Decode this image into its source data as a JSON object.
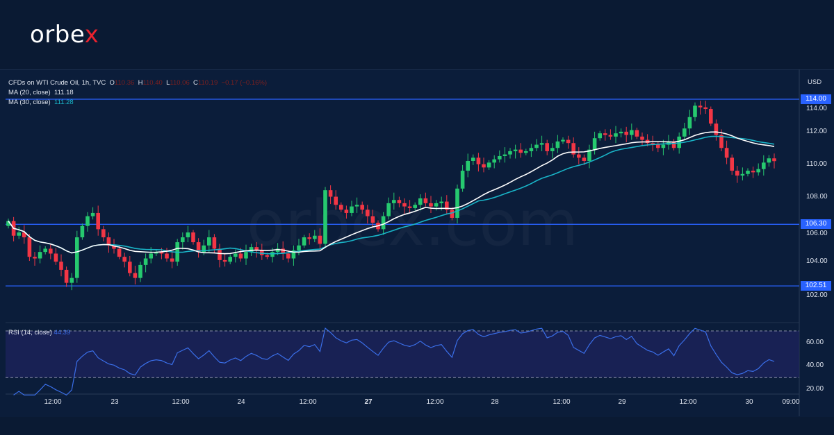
{
  "brand": {
    "logo_main": "orbe",
    "logo_x": "x",
    "watermark": "orbex.com"
  },
  "legend": {
    "symbol": "CFDs on WTI Crude Oil, 1h, TVC",
    "o_label": "O",
    "o": "110.36",
    "h_label": "H",
    "h": "110.40",
    "l_label": "L",
    "l": "110.06",
    "c_label": "C",
    "c": "110.19",
    "change": "−0.17 (−0.16%)",
    "ma20_label": "MA (20, close)",
    "ma20": "111.18",
    "ma30_label": "MA (30, close)",
    "ma30": "111.28",
    "rsi_label": "RSI (14, close)",
    "rsi": "44.39"
  },
  "axis": {
    "currency": "USD"
  },
  "colors": {
    "up": "#26c96f",
    "down": "#f23645",
    "ma20": "#ffffff",
    "ma30": "#19b5c8",
    "rsi": "#3a6ee8",
    "level": "#2962ff"
  },
  "chart_data": {
    "type": "candlestick",
    "title": "CFDs on WTI Crude Oil, 1h, TVC",
    "ylim": [
      101,
      115
    ],
    "yticks": [
      "114.00",
      "112.00",
      "110.00",
      "108.00",
      "106.00",
      "104.00",
      "102.00"
    ],
    "horizontal_levels": [
      "114.00",
      "106.30",
      "102.51"
    ],
    "xticks": [
      "12:00",
      "23",
      "12:00",
      "24",
      "12:00",
      "27",
      "12:00",
      "28",
      "12:00",
      "29",
      "12:00",
      "30",
      "09:00"
    ],
    "rsi_ylim": [
      15,
      80
    ],
    "rsi_ticks": [
      "60.00",
      "40.00",
      "20.00"
    ],
    "rsi_bands": [
      70,
      30
    ],
    "open_first": 106.2,
    "closes": [
      106.5,
      105.6,
      105.8,
      105.5,
      104.3,
      104.2,
      104.6,
      104.8,
      104.5,
      104.0,
      103.5,
      102.7,
      103.0,
      105.5,
      106.2,
      106.8,
      107.0,
      106.0,
      105.5,
      105.0,
      104.8,
      104.3,
      104.0,
      103.3,
      103.0,
      103.8,
      104.2,
      104.5,
      104.6,
      104.5,
      104.2,
      104.0,
      105.2,
      105.5,
      105.8,
      105.2,
      104.6,
      105.0,
      105.5,
      104.8,
      104.1,
      104.0,
      104.3,
      104.5,
      104.2,
      104.6,
      104.9,
      104.7,
      104.4,
      104.3,
      104.6,
      104.8,
      104.5,
      104.2,
      104.7,
      105.0,
      105.5,
      105.4,
      105.6,
      105.1,
      108.4,
      108.0,
      107.5,
      107.2,
      107.0,
      107.4,
      107.5,
      107.2,
      106.8,
      106.4,
      106.0,
      106.8,
      107.6,
      107.8,
      107.6,
      107.4,
      107.3,
      107.5,
      107.9,
      107.6,
      107.4,
      107.6,
      107.7,
      107.2,
      106.7,
      108.5,
      109.6,
      110.2,
      110.4,
      110.0,
      109.8,
      110.1,
      110.3,
      110.5,
      110.6,
      110.8,
      110.9,
      110.7,
      110.8,
      111.0,
      111.2,
      111.3,
      110.8,
      111.0,
      111.4,
      111.5,
      111.3,
      110.6,
      110.4,
      110.2,
      110.9,
      111.6,
      111.9,
      111.8,
      111.7,
      111.9,
      112.0,
      111.8,
      112.1,
      111.7,
      111.5,
      111.3,
      111.2,
      111.0,
      111.2,
      111.4,
      111.0,
      111.7,
      112.2,
      112.9,
      113.6,
      113.5,
      113.4,
      112.5,
      111.8,
      111.0,
      110.4,
      109.6,
      109.3,
      109.4,
      109.6,
      109.5,
      109.7,
      110.1,
      110.36,
      110.19
    ]
  }
}
